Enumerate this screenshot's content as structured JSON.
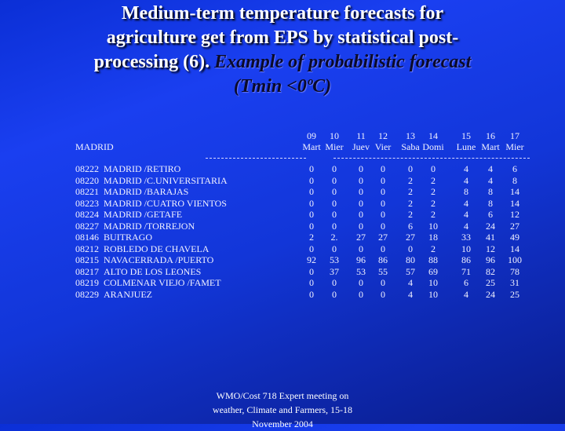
{
  "title": {
    "line1": "Medium-term temperature forecasts for",
    "line2": "agriculture get from EPS by statistical post-",
    "line3_normal": "processing (6). ",
    "line3_italic": "Example of probabilistic forecast",
    "line4": "(Tmin <0ºC)"
  },
  "region": "MADRID",
  "columns": [
    {
      "day": "09",
      "weekday": "Mart"
    },
    {
      "day": "10",
      "weekday": "Mier"
    },
    {
      "day": "11",
      "weekday": "Juev"
    },
    {
      "day": "12",
      "weekday": "Vier"
    },
    {
      "day": "13",
      "weekday": "Saba"
    },
    {
      "day": "14",
      "weekday": "Domi"
    },
    {
      "day": "15",
      "weekday": "Lune"
    },
    {
      "day": "16",
      "weekday": "Mart"
    },
    {
      "day": "17",
      "weekday": "Mier"
    }
  ],
  "stations": [
    {
      "code": "08222",
      "name": "MADRID /RETIRO",
      "values": [
        "0",
        "0",
        "0",
        "0",
        "0",
        "0",
        "4",
        "4",
        "6"
      ]
    },
    {
      "code": "08220",
      "name": "MADRID /C.UNIVERSITARIA",
      "values": [
        "0",
        "0",
        "0",
        "0",
        "2",
        "2",
        "4",
        "4",
        "8"
      ]
    },
    {
      "code": "08221",
      "name": "MADRID /BARAJAS",
      "values": [
        "0",
        "0",
        "0",
        "0",
        "2",
        "2",
        "8",
        "8",
        "14"
      ]
    },
    {
      "code": "08223",
      "name": "MADRID /CUATRO VIENTOS",
      "values": [
        "0",
        "0",
        "0",
        "0",
        "2",
        "2",
        "4",
        "8",
        "14"
      ]
    },
    {
      "code": "08224",
      "name": "MADRID /GETAFE",
      "values": [
        "0",
        "0",
        "0",
        "0",
        "2",
        "2",
        "4",
        "6",
        "12"
      ]
    },
    {
      "code": "08227",
      "name": "MADRID /TORREJON",
      "values": [
        "0",
        "0",
        "0",
        "0",
        "6",
        "10",
        "4",
        "24",
        "27"
      ]
    },
    {
      "code": "08146",
      "name": "BUITRAGO",
      "values": [
        "2",
        "2.",
        "27",
        "27",
        "27",
        "18",
        "33",
        "41",
        "49"
      ]
    },
    {
      "code": "08212",
      "name": "ROBLEDO DE CHAVELA",
      "values": [
        "0",
        "0",
        "0",
        "0",
        "0",
        "2",
        "10",
        "12",
        "14"
      ]
    },
    {
      "code": "08215",
      "name": "NAVACERRADA /PUERTO",
      "values": [
        "92",
        "53",
        "96",
        "86",
        "80",
        "88",
        "86",
        "96",
        "100"
      ]
    },
    {
      "code": "08217",
      "name": "ALTO DE LOS LEONES",
      "values": [
        "0",
        "37",
        "53",
        "55",
        "57",
        "69",
        "71",
        "82",
        "78"
      ]
    },
    {
      "code": "08219",
      "name": "COLMENAR VIEJO /FAMET",
      "values": [
        "0",
        "0",
        "0",
        "0",
        "4",
        "10",
        "6",
        "25",
        "31"
      ]
    },
    {
      "code": "08229",
      "name": "ARANJUEZ",
      "values": [
        "0",
        "0",
        "0",
        "0",
        "4",
        "10",
        "4",
        "24",
        "25"
      ]
    }
  ],
  "footer": {
    "line1": "WMO/Cost 718 Expert meeting on",
    "line2": "weather, Climate and Farmers, 15-18",
    "line3": "November 2004"
  }
}
